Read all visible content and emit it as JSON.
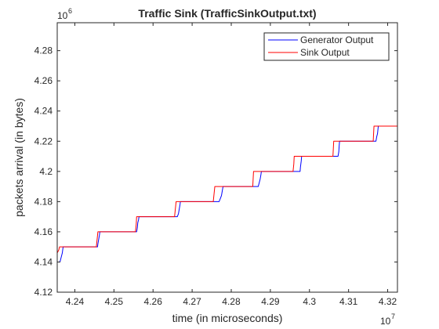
{
  "chart_data": {
    "type": "line",
    "title": "Traffic Sink (TrafficSinkOutput.txt)",
    "xlabel": "time (in microseconds)",
    "ylabel": "packets arrival (in bytes)",
    "x_multiplier_base": "10",
    "x_multiplier_exp": "7",
    "y_multiplier_base": "10",
    "y_multiplier_exp": "6",
    "xlim": [
      4.2355,
      4.3225
    ],
    "ylim": [
      4.12,
      4.2985
    ],
    "x_ticks": [
      4.24,
      4.25,
      4.26,
      4.27,
      4.28,
      4.29,
      4.3,
      4.31,
      4.32
    ],
    "x_tick_labels": [
      "4.24",
      "4.25",
      "4.26",
      "4.27",
      "4.28",
      "4.29",
      "4.3",
      "4.31",
      "4.32"
    ],
    "y_ticks": [
      4.12,
      4.14,
      4.16,
      4.18,
      4.2,
      4.22,
      4.24,
      4.26,
      4.28
    ],
    "y_tick_labels": [
      "4.12",
      "4.14",
      "4.16",
      "4.18",
      "4.2",
      "4.22",
      "4.24",
      "4.26",
      "4.28"
    ],
    "grid": false,
    "legend_position": "top-right",
    "series": [
      {
        "name": "Generator Output",
        "color": "#0000ff",
        "x": [
          4.2355,
          4.2362,
          4.2364,
          4.2366,
          4.2368,
          4.237,
          4.2458,
          4.2459,
          4.2461,
          4.2463,
          4.2464,
          4.2558,
          4.256,
          4.2561,
          4.2563,
          4.2564,
          4.2662,
          4.2665,
          4.2667,
          4.2669,
          4.267,
          4.2769,
          4.2772,
          4.2775,
          4.2777,
          4.2779,
          4.2869,
          4.2872,
          4.2874,
          4.2876,
          4.2877,
          4.2976,
          4.2977,
          4.2979,
          4.298,
          4.3073,
          4.3075,
          4.3076,
          4.3077,
          4.317,
          4.3172,
          4.3174,
          4.3176,
          4.3225
        ],
        "y": [
          4.14,
          4.14,
          4.142,
          4.144,
          4.146,
          4.15,
          4.15,
          4.152,
          4.155,
          4.158,
          4.16,
          4.16,
          4.163,
          4.166,
          4.168,
          4.17,
          4.17,
          4.172,
          4.175,
          4.178,
          4.18,
          4.18,
          4.182,
          4.184,
          4.187,
          4.19,
          4.19,
          4.193,
          4.195,
          4.198,
          4.2,
          4.2,
          4.203,
          4.207,
          4.21,
          4.21,
          4.213,
          4.217,
          4.22,
          4.22,
          4.223,
          4.225,
          4.23,
          4.23
        ]
      },
      {
        "name": "Sink Output",
        "color": "#ff0000",
        "x": [
          4.2355,
          4.2357,
          4.2359,
          4.2361,
          4.2455,
          4.2457,
          4.2459,
          4.2555,
          4.2557,
          4.2558,
          4.2655,
          4.2657,
          4.2659,
          4.2754,
          4.2756,
          4.2758,
          4.2855,
          4.2856,
          4.2857,
          4.2958,
          4.296,
          4.2961,
          4.306,
          4.3061,
          4.3062,
          4.3163,
          4.3164,
          4.3165,
          4.3225
        ],
        "y": [
          4.146,
          4.147,
          4.148,
          4.15,
          4.15,
          4.155,
          4.16,
          4.16,
          4.165,
          4.17,
          4.17,
          4.175,
          4.18,
          4.18,
          4.185,
          4.19,
          4.19,
          4.195,
          4.2,
          4.2,
          4.205,
          4.21,
          4.21,
          4.215,
          4.22,
          4.22,
          4.225,
          4.23,
          4.23
        ]
      }
    ]
  }
}
